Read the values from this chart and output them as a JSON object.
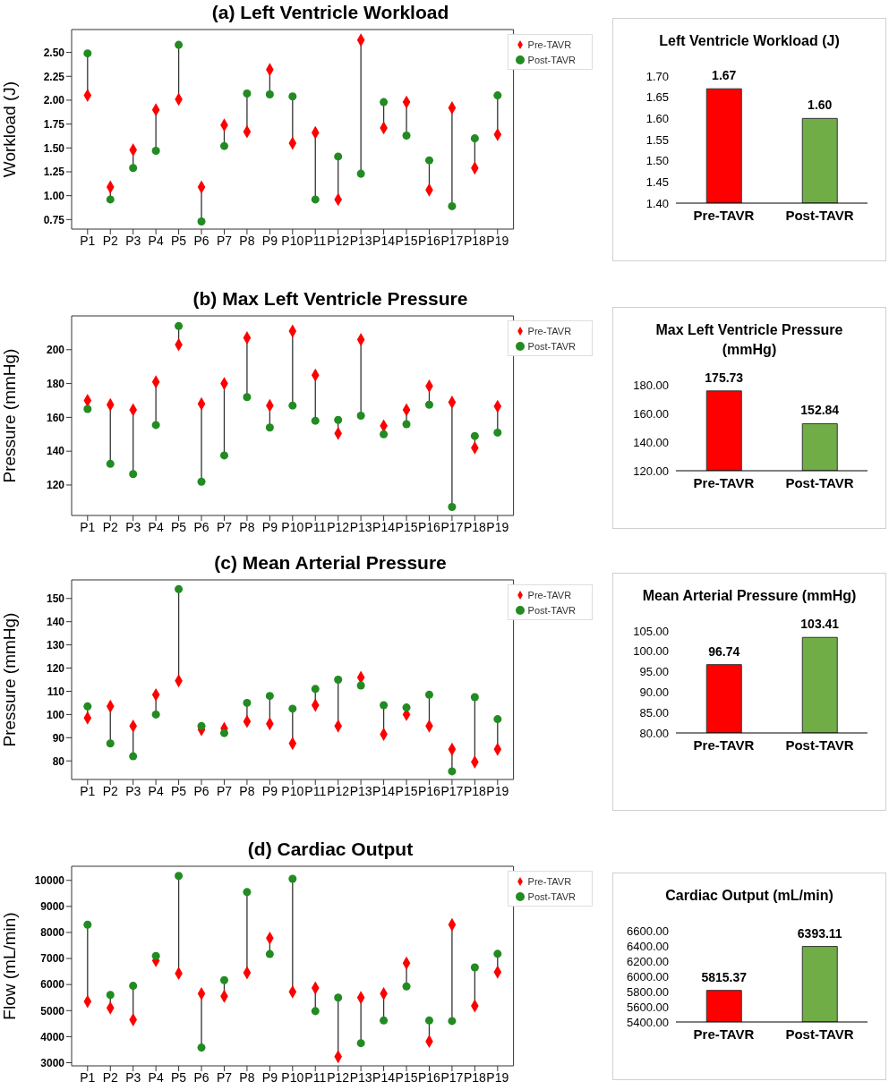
{
  "chart_data": [
    {
      "type": "scatter",
      "title": "(a) Left Ventricle Workload",
      "ylabel": "Workload (J)",
      "categories": [
        "P1",
        "P2",
        "P3",
        "P4",
        "P5",
        "P6",
        "P7",
        "P8",
        "P9",
        "P10",
        "P11",
        "P12",
        "P13",
        "P14",
        "P15",
        "P16",
        "P17",
        "P18",
        "P19"
      ],
      "ylim": [
        0.65,
        2.74
      ],
      "yticks": [
        {
          "value": 0.75,
          "label": "0.75"
        },
        {
          "value": 1,
          "label": "1.00"
        },
        {
          "value": 1.25,
          "label": "1.25"
        },
        {
          "value": 1.5,
          "label": "1.50"
        },
        {
          "value": 1.75,
          "label": "1.75"
        },
        {
          "value": 2,
          "label": "2.00"
        },
        {
          "value": 2.25,
          "label": "2.25"
        },
        {
          "value": 2.5,
          "label": "2.50"
        }
      ],
      "legend": "top right",
      "series": [
        {
          "name": "Pre-TAVR",
          "color": "#ff0000",
          "marker": "diamond",
          "values": [
            2.05,
            1.09,
            1.48,
            1.9,
            2.01,
            1.09,
            1.74,
            1.67,
            2.32,
            1.55,
            1.66,
            0.96,
            2.63,
            1.71,
            1.98,
            1.06,
            1.92,
            1.29,
            1.64
          ]
        },
        {
          "name": "Post-TAVR",
          "color": "#228b22",
          "marker": "circle",
          "values": [
            2.49,
            0.96,
            1.29,
            1.47,
            2.58,
            0.73,
            1.52,
            2.07,
            2.06,
            2.04,
            0.96,
            1.41,
            1.23,
            1.98,
            1.63,
            1.37,
            0.89,
            1.6,
            2.05
          ]
        }
      ]
    },
    {
      "type": "bar",
      "title": "Left Ventricle Workload (J)",
      "categories": [
        "Pre-TAVR",
        "Post-TAVR"
      ],
      "values": [
        1.67,
        1.6
      ],
      "value_labels": [
        "1.67",
        "1.60"
      ],
      "colors": [
        "#ff0000",
        "#70ad47"
      ],
      "ylim": [
        1.4,
        1.7
      ],
      "yticks": [
        {
          "value": 1.4,
          "label": "1.40"
        },
        {
          "value": 1.45,
          "label": "1.45"
        },
        {
          "value": 1.5,
          "label": "1.50"
        },
        {
          "value": 1.55,
          "label": "1.55"
        },
        {
          "value": 1.6,
          "label": "1.60"
        },
        {
          "value": 1.65,
          "label": "1.65"
        },
        {
          "value": 1.7,
          "label": "1.70"
        }
      ]
    },
    {
      "type": "scatter",
      "title": "(b) Max Left Ventricle Pressure",
      "ylabel": "Pressure (mmHg)",
      "categories": [
        "P1",
        "P2",
        "P3",
        "P4",
        "P5",
        "P6",
        "P7",
        "P8",
        "P9",
        "P10",
        "P11",
        "P12",
        "P13",
        "P14",
        "P15",
        "P16",
        "P17",
        "P18",
        "P19"
      ],
      "ylim": [
        102,
        220
      ],
      "yticks": [
        120,
        140,
        160,
        180,
        200
      ],
      "legend": "top right",
      "series": [
        {
          "name": "Pre-TAVR",
          "color": "#ff0000",
          "marker": "diamond",
          "values": [
            170,
            167.5,
            164.5,
            181,
            203,
            168,
            180,
            207,
            167,
            211,
            185,
            150.5,
            206,
            155,
            164.5,
            178.5,
            169,
            142,
            166.5
          ]
        },
        {
          "name": "Post-TAVR",
          "color": "#228b22",
          "marker": "circle",
          "values": [
            165,
            132.5,
            126.5,
            155.5,
            214,
            122,
            137.5,
            172,
            154,
            167,
            158,
            158.5,
            161,
            150,
            156,
            167.5,
            107,
            149,
            151
          ]
        }
      ]
    },
    {
      "type": "bar",
      "title": "Max Left Ventricle Pressure (mmHg)",
      "categories": [
        "Pre-TAVR",
        "Post-TAVR"
      ],
      "values": [
        175.73,
        152.84
      ],
      "value_labels": [
        "175.73",
        "152.84"
      ],
      "colors": [
        "#ff0000",
        "#70ad47"
      ],
      "ylim": [
        120,
        180
      ],
      "yticks": [
        {
          "value": 120,
          "label": "120.00"
        },
        {
          "value": 140,
          "label": "140.00"
        },
        {
          "value": 160,
          "label": "160.00"
        },
        {
          "value": 180,
          "label": "180.00"
        }
      ]
    },
    {
      "type": "scatter",
      "title": "(c) Mean Arterial Pressure",
      "ylabel": "Pressure (mmHg)",
      "categories": [
        "P1",
        "P2",
        "P3",
        "P4",
        "P5",
        "P6",
        "P7",
        "P8",
        "P9",
        "P10",
        "P11",
        "P12",
        "P13",
        "P14",
        "P15",
        "P16",
        "P17",
        "P18",
        "P19"
      ],
      "ylim": [
        72,
        158
      ],
      "yticks": [
        80,
        90,
        100,
        110,
        120,
        130,
        140,
        150
      ],
      "legend": "top right",
      "series": [
        {
          "name": "Pre-TAVR",
          "color": "#ff0000",
          "marker": "diamond",
          "values": [
            98.5,
            103.5,
            95,
            108.5,
            114.5,
            93.5,
            94,
            97,
            96,
            87.5,
            104,
            95,
            116,
            91.5,
            100,
            95,
            85,
            79.5,
            85
          ]
        },
        {
          "name": "Post-TAVR",
          "color": "#228b22",
          "marker": "circle",
          "values": [
            103.5,
            87.5,
            82,
            100,
            154,
            95,
            92,
            105,
            108,
            102.5,
            111,
            115,
            112.5,
            104,
            103,
            108.5,
            75.5,
            107.5,
            98
          ]
        }
      ]
    },
    {
      "type": "bar",
      "title": "Mean Arterial Pressure (mmHg)",
      "categories": [
        "Pre-TAVR",
        "Post-TAVR"
      ],
      "values": [
        96.74,
        103.41
      ],
      "value_labels": [
        "96.74",
        "103.41"
      ],
      "colors": [
        "#ff0000",
        "#70ad47"
      ],
      "ylim": [
        80,
        105
      ],
      "yticks": [
        {
          "value": 80,
          "label": "80.00"
        },
        {
          "value": 85,
          "label": "85.00"
        },
        {
          "value": 90,
          "label": "90.00"
        },
        {
          "value": 95,
          "label": "95.00"
        },
        {
          "value": 100,
          "label": "100.00"
        },
        {
          "value": 105,
          "label": "105.00"
        }
      ]
    },
    {
      "type": "scatter",
      "title": "(d) Cardiac Output",
      "ylabel": "Flow (mL/min)",
      "categories": [
        "P1",
        "P2",
        "P3",
        "P4",
        "P5",
        "P6",
        "P7",
        "P8",
        "P9",
        "P10",
        "P11",
        "P12",
        "P13",
        "P14",
        "P15",
        "P16",
        "P17",
        "P18",
        "P19"
      ],
      "ylim": [
        2880,
        10540
      ],
      "yticks": [
        3000,
        4000,
        5000,
        6000,
        7000,
        8000,
        9000,
        10000
      ],
      "legend": "top right",
      "series": [
        {
          "name": "Pre-TAVR",
          "color": "#ff0000",
          "marker": "diamond",
          "values": [
            5350,
            5100,
            4650,
            6920,
            6430,
            5650,
            5550,
            6450,
            7780,
            5720,
            5870,
            3230,
            5500,
            5650,
            6820,
            3820,
            8300,
            5180,
            6480
          ]
        },
        {
          "name": "Post-TAVR",
          "color": "#228b22",
          "marker": "circle",
          "values": [
            8300,
            5600,
            5950,
            7100,
            10170,
            3580,
            6170,
            9550,
            7170,
            10060,
            4980,
            5500,
            3750,
            4620,
            5930,
            4620,
            4600,
            6660,
            7180
          ]
        }
      ]
    },
    {
      "type": "bar",
      "title": "Cardiac Output (mL/min)",
      "categories": [
        "Pre-TAVR",
        "Post-TAVR"
      ],
      "values": [
        5815.37,
        6393.11
      ],
      "value_labels": [
        "5815.37",
        "6393.11"
      ],
      "colors": [
        "#ff0000",
        "#70ad47"
      ],
      "ylim": [
        5400,
        6600
      ],
      "yticks": [
        {
          "value": 5400,
          "label": "5400.00"
        },
        {
          "value": 5600,
          "label": "5600.00"
        },
        {
          "value": 5800,
          "label": "5800.00"
        },
        {
          "value": 6000,
          "label": "6000.00"
        },
        {
          "value": 6200,
          "label": "6200.00"
        },
        {
          "value": 6400,
          "label": "6400.00"
        },
        {
          "value": 6600,
          "label": "6600.00"
        }
      ]
    }
  ]
}
